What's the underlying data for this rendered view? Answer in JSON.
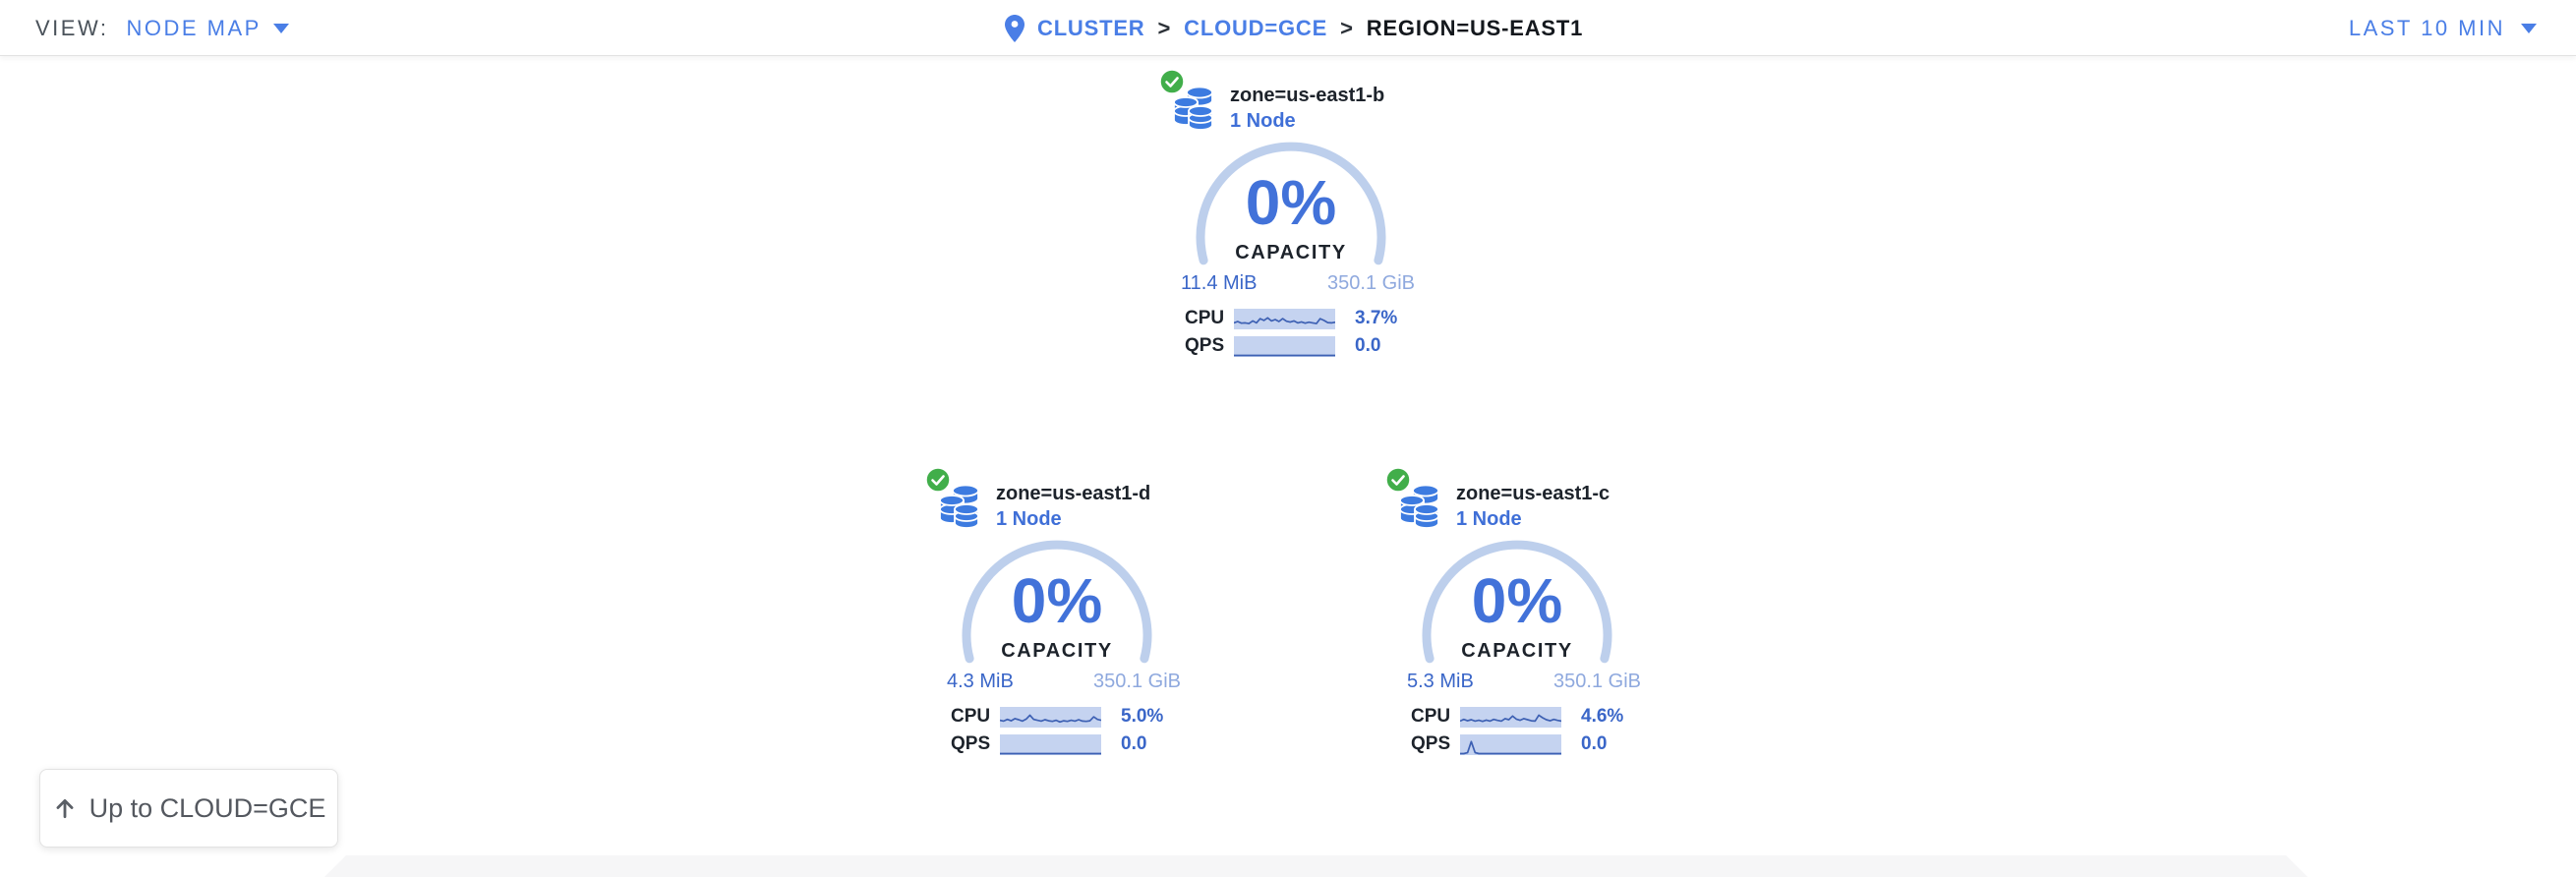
{
  "topbar": {
    "view_label": "VIEW:",
    "view_value": "NODE MAP",
    "breadcrumb": [
      {
        "label": "CLUSTER"
      },
      {
        "label": "CLOUD=GCE"
      },
      {
        "label": "REGION=US-EAST1"
      }
    ],
    "separator": ">",
    "time_range": "LAST 10 MIN"
  },
  "zones": [
    {
      "name": "zone=us-east1-b",
      "node_count": "1 Node",
      "status": "healthy",
      "capacity_pct": "0%",
      "capacity_label": "CAPACITY",
      "used": "11.4 MiB",
      "total": "350.1 GiB",
      "cpu_label": "CPU",
      "cpu_value": "3.7%",
      "qps_label": "QPS",
      "qps_value": "0.0",
      "cpu_sparkline": [
        0.3,
        0.38,
        0.28,
        0.3,
        0.26,
        0.42,
        0.3,
        0.55,
        0.45,
        0.6,
        0.42,
        0.5,
        0.38,
        0.55,
        0.4,
        0.35,
        0.42,
        0.3,
        0.36,
        0.28,
        0.34,
        0.3,
        0.26,
        0.55,
        0.45,
        0.32,
        0.3,
        0.34
      ],
      "qps_sparkline": [
        0,
        0,
        0,
        0,
        0,
        0,
        0,
        0,
        0,
        0,
        0,
        0,
        0,
        0,
        0,
        0,
        0,
        0,
        0,
        0,
        0,
        0,
        0,
        0,
        0,
        0,
        0,
        0
      ]
    },
    {
      "name": "zone=us-east1-d",
      "node_count": "1 Node",
      "status": "healthy",
      "capacity_pct": "0%",
      "capacity_label": "CAPACITY",
      "used": "4.3 MiB",
      "total": "350.1 GiB",
      "cpu_label": "CPU",
      "cpu_value": "5.0%",
      "qps_label": "QPS",
      "qps_value": "0.0",
      "cpu_sparkline": [
        0.35,
        0.3,
        0.4,
        0.32,
        0.45,
        0.38,
        0.3,
        0.42,
        0.65,
        0.4,
        0.35,
        0.3,
        0.38,
        0.32,
        0.28,
        0.35,
        0.25,
        0.32,
        0.28,
        0.35,
        0.3,
        0.38,
        0.3,
        0.28,
        0.32,
        0.55,
        0.4,
        0.35
      ],
      "qps_sparkline": [
        0,
        0,
        0,
        0,
        0,
        0,
        0,
        0,
        0,
        0,
        0,
        0,
        0,
        0,
        0,
        0,
        0,
        0,
        0,
        0,
        0,
        0,
        0,
        0,
        0,
        0,
        0,
        0
      ]
    },
    {
      "name": "zone=us-east1-c",
      "node_count": "1 Node",
      "status": "healthy",
      "capacity_pct": "0%",
      "capacity_label": "CAPACITY",
      "used": "5.3 MiB",
      "total": "350.1 GiB",
      "cpu_label": "CPU",
      "cpu_value": "4.6%",
      "qps_label": "QPS",
      "qps_value": "0.0",
      "cpu_sparkline": [
        0.3,
        0.4,
        0.32,
        0.38,
        0.3,
        0.35,
        0.28,
        0.36,
        0.3,
        0.4,
        0.34,
        0.3,
        0.45,
        0.38,
        0.6,
        0.42,
        0.35,
        0.45,
        0.38,
        0.32,
        0.3,
        0.65,
        0.5,
        0.38,
        0.32,
        0.4,
        0.34,
        0.3
      ],
      "qps_sparkline": [
        0,
        0,
        0.05,
        0.72,
        0.06,
        0,
        0,
        0,
        0,
        0,
        0,
        0,
        0,
        0,
        0,
        0,
        0,
        0,
        0,
        0,
        0,
        0,
        0,
        0,
        0,
        0,
        0,
        0
      ]
    }
  ],
  "up_button": {
    "label": "Up to CLOUD=GCE"
  },
  "colors": {
    "link_blue": "#4a7ee6",
    "value_blue": "#3a66c8",
    "pct_blue": "#4272d9",
    "total_blue": "#8fa9de",
    "arc_blue": "#bdcfec",
    "spark_bg": "#c5d3f0",
    "spark_line": "#3d60b3",
    "healthy_green": "#41ae4a",
    "dark_text": "#1d232b"
  }
}
